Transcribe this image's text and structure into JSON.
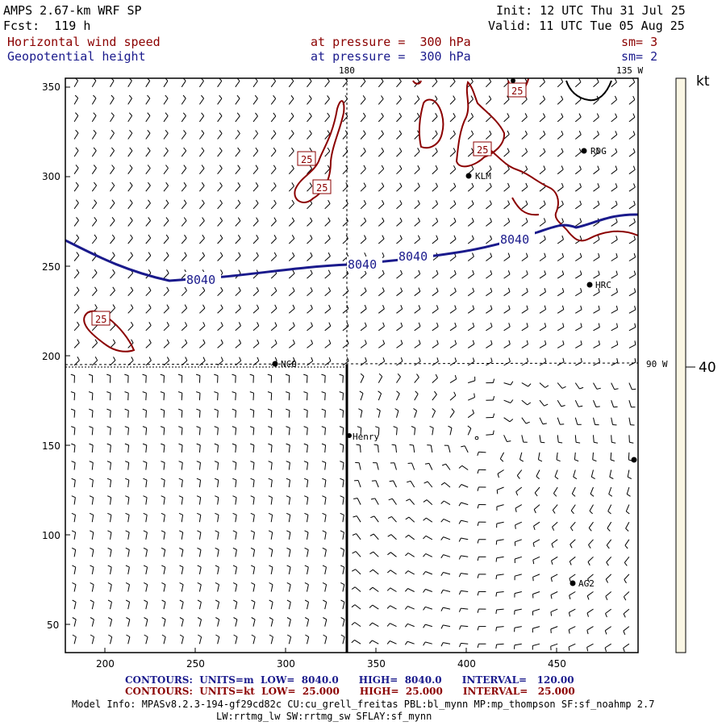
{
  "header": {
    "model_title": "AMPS 2.67-km WRF SP",
    "forecast": "Fcst:  119 h",
    "init": "Init: 12 UTC Thu 31 Jul 25",
    "valid": "Valid: 11 UTC Tue 05 Aug 25",
    "field1_name": "Horizontal wind speed",
    "field1_level": "at pressure =  300 hPa",
    "field1_sm": "sm= 3",
    "field2_name": "Geopotential height",
    "field2_level": "at pressure =  300 hPa",
    "field2_sm": "sm= 2"
  },
  "map": {
    "x_ticks": [
      "200",
      "250",
      "300",
      "350",
      "400",
      "450"
    ],
    "y_ticks": [
      "350",
      "300",
      "250",
      "200",
      "150",
      "100",
      "50"
    ],
    "meridian_labels": [
      "180",
      "135 W",
      "90 W"
    ],
    "height_contour_labels": [
      "8040",
      "8040",
      "8040",
      "8040"
    ],
    "wind_contour_labels": [
      "25",
      "25",
      "25",
      "25",
      "25"
    ],
    "stations": [
      "NCO",
      "Henry",
      "KLM",
      "RDG",
      "HRC",
      "AG2"
    ]
  },
  "colorbar": {
    "unit": "kt",
    "tick": "40"
  },
  "footer": {
    "contours1": "CONTOURS:  UNITS=m  LOW=  8040.0      HIGH=  8040.0      INTERVAL=   120.00",
    "contours2": "CONTOURS:  UNITS=kt  LOW=  25.000      HIGH=  25.000      INTERVAL=   25.000",
    "model_info1": "Model Info: MPASv8.2.3-194-gf29cd82c CU:cu_grell_freitas PBL:bl_mynn MP:mp_thompson SF:sf_noahmp 2.7",
    "model_info2": "LW:rrtmg_lw SW:rrtmg_sw SFLAY:sf_mynn"
  },
  "colors": {
    "height_contour": "#1a1a8c",
    "wind_contour": "#8b0000",
    "colorbar_fill": "#faf6e4"
  }
}
